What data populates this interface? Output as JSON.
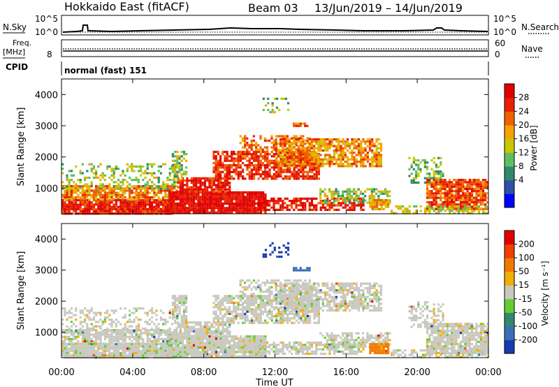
{
  "header": {
    "station": "Hokkaido East (fitACF)",
    "beam": "Beam 03",
    "date_range": "13/Jun/2019 – 14/Jun/2019"
  },
  "noise_panel": {
    "left_label": "N.Sky",
    "right_label": "N.Search",
    "ticks": [
      "10^5",
      "10^0"
    ]
  },
  "freq_panel": {
    "left_label": "Freq.",
    "left_unit": "[MHz]",
    "left_ticks": [
      "8"
    ],
    "right_label": "Nave",
    "right_ticks": [
      "60",
      "0"
    ]
  },
  "cpid_panel": {
    "label": "CPID",
    "mode": "normal (fast) 151"
  },
  "x_axis": {
    "label": "Time UT",
    "ticks": [
      "00:00",
      "04:00",
      "08:00",
      "12:00",
      "16:00",
      "20:00",
      "00:00"
    ]
  },
  "chart_data": [
    {
      "type": "heatmap",
      "name": "power",
      "ylabel": "Slant Range [km]",
      "yticks": [
        "4000",
        "3000",
        "2000",
        "1000"
      ],
      "ylim": [
        180,
        4500
      ],
      "xlim_hours": [
        0,
        24
      ],
      "colorbar": {
        "label": "Power [dB]",
        "ticks": [
          "28",
          "24",
          "20",
          "16",
          "12",
          "8",
          "4"
        ],
        "colors": [
          "#0000ff",
          "#2f4fa8",
          "#2e8a6a",
          "#5fbf5f",
          "#c8c800",
          "#f5a300",
          "#f06000",
          "#e82000",
          "#e00000"
        ]
      }
    },
    {
      "type": "heatmap",
      "name": "velocity",
      "ylabel": "Slant Range [km]",
      "yticks": [
        "4000",
        "3000",
        "2000",
        "1000"
      ],
      "ylim": [
        180,
        4500
      ],
      "xlim_hours": [
        0,
        24
      ],
      "colorbar": {
        "label": "Velocity [m s⁻¹]",
        "ticks": [
          "200",
          "100",
          "50",
          "15",
          "-15",
          "-50",
          "-100",
          "-200"
        ],
        "colors": [
          "#1a3ab0",
          "#3a6fb8",
          "#2e8a6a",
          "#66cc33",
          "#c8c8c0",
          "#f0b000",
          "#f07a00",
          "#f04000",
          "#e00000"
        ]
      }
    }
  ]
}
